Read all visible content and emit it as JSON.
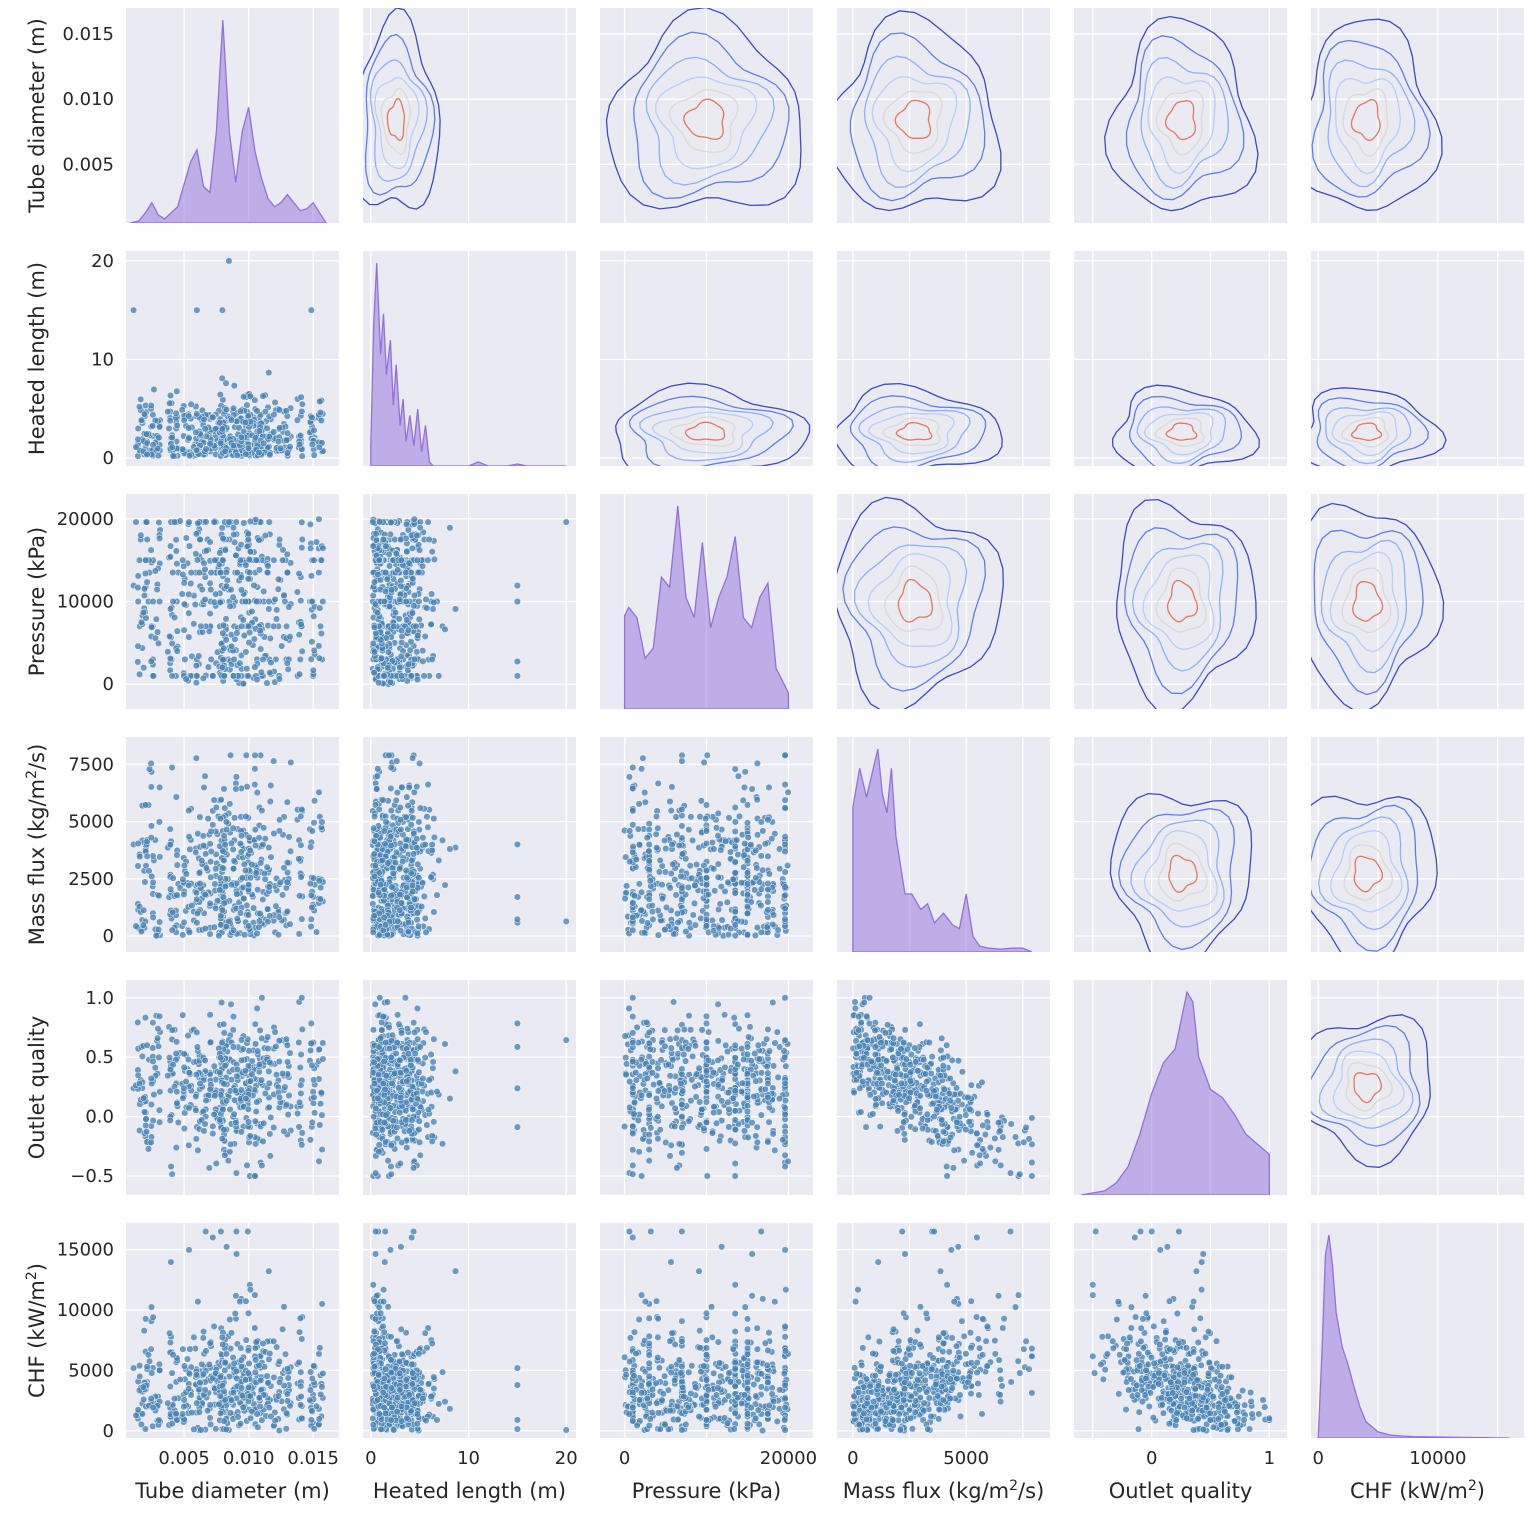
{
  "chart_data": {
    "type": "pairplot",
    "variables": [
      {
        "key": "d",
        "label": "Tube diameter (m)",
        "range": [
          0.0005,
          0.017
        ],
        "ticks": [
          0.005,
          0.01,
          0.015
        ],
        "tick_labels": [
          "0.005",
          "0.010",
          "0.015"
        ]
      },
      {
        "key": "L",
        "label": "Heated length (m)",
        "range": [
          -0.8,
          21
        ],
        "ticks": [
          0,
          10,
          20
        ],
        "tick_labels": [
          "0",
          "10",
          "20"
        ]
      },
      {
        "key": "P",
        "label": "Pressure (kPa)",
        "range": [
          -3000,
          23000
        ],
        "ticks": [
          0,
          10000,
          20000
        ],
        "tick_labels": [
          "0",
          "10000",
          "20000"
        ]
      },
      {
        "key": "G",
        "label": "Mass flux (kg/m²/s)",
        "label_parts": [
          "Mass flux (kg/m",
          "2",
          "/s)"
        ],
        "range": [
          -700,
          8700
        ],
        "ticks": [
          0,
          2500,
          5000,
          7500
        ],
        "tick_labels": [
          "0",
          "2500",
          "5000",
          "7500"
        ]
      },
      {
        "key": "x",
        "label": "Outlet quality",
        "range": [
          -0.66,
          1.15
        ],
        "ticks": [
          -0.5,
          0.0,
          0.5,
          1.0
        ],
        "tick_labels": [
          "−0.5",
          "0.0",
          "0.5",
          "1.0"
        ]
      },
      {
        "key": "CHF",
        "label": "CHF (kW/m²)",
        "label_parts": [
          "CHF (kW/m",
          "2",
          ")"
        ],
        "range": [
          -600,
          17200
        ],
        "ticks": [
          0,
          5000,
          10000,
          15000
        ],
        "tick_labels": [
          "0",
          "5000",
          "10000",
          "15000"
        ]
      }
    ],
    "bottom_tick_overrides": {
      "x": {
        "ticks": [
          0,
          1
        ],
        "tick_labels": [
          "0",
          "1"
        ]
      },
      "CHF": {
        "ticks": [
          0,
          10000
        ],
        "tick_labels": [
          "0",
          "10000"
        ]
      },
      "G": {
        "ticks": [
          0,
          5000
        ],
        "tick_labels": [
          "0",
          "5000"
        ]
      },
      "P": {
        "ticks": [
          0,
          20000
        ],
        "tick_labels": [
          "0",
          "20000"
        ]
      }
    },
    "diagonal": {
      "type": "kde",
      "color": "#9370db",
      "d": {
        "x": [
          0.0008,
          0.0015,
          0.002,
          0.0025,
          0.003,
          0.0035,
          0.0045,
          0.0055,
          0.006,
          0.0065,
          0.007,
          0.0075,
          0.008,
          0.0085,
          0.009,
          0.0095,
          0.01,
          0.0105,
          0.011,
          0.0115,
          0.012,
          0.0125,
          0.013,
          0.0135,
          0.014,
          0.0145,
          0.015,
          0.0155,
          0.016
        ],
        "y": [
          0.0,
          0.01,
          0.05,
          0.1,
          0.04,
          0.02,
          0.08,
          0.3,
          0.36,
          0.18,
          0.15,
          0.45,
          1.0,
          0.45,
          0.2,
          0.45,
          0.57,
          0.35,
          0.22,
          0.12,
          0.08,
          0.1,
          0.14,
          0.1,
          0.06,
          0.07,
          0.1,
          0.05,
          0.0
        ]
      },
      "L": {
        "x": [
          0,
          0.3,
          0.6,
          1.0,
          1.3,
          1.6,
          2.0,
          2.3,
          2.6,
          3.0,
          3.3,
          3.6,
          4.0,
          4.4,
          4.8,
          5.2,
          5.6,
          6.0,
          6.4,
          7,
          8,
          9,
          10,
          11,
          12,
          13,
          14,
          15,
          16,
          18,
          20
        ],
        "y": [
          0.1,
          0.7,
          1.0,
          0.55,
          0.75,
          0.45,
          0.62,
          0.3,
          0.5,
          0.2,
          0.33,
          0.12,
          0.25,
          0.1,
          0.28,
          0.07,
          0.2,
          0.02,
          0.0,
          0.0,
          0.0,
          0.0,
          0.0,
          0.02,
          0.0,
          0.0,
          0.0,
          0.01,
          0.0,
          0.0,
          0.0
        ]
      },
      "P": {
        "x": [
          0,
          500,
          1500,
          2500,
          3500,
          4500,
          5500,
          6500,
          7500,
          8500,
          9500,
          10500,
          11500,
          12500,
          13500,
          14500,
          15500,
          16500,
          17500,
          18500,
          19500,
          20000
        ],
        "y": [
          0.46,
          0.5,
          0.45,
          0.25,
          0.3,
          0.65,
          0.6,
          1.0,
          0.55,
          0.45,
          0.82,
          0.4,
          0.55,
          0.65,
          0.85,
          0.45,
          0.4,
          0.55,
          0.62,
          0.2,
          0.12,
          0.08
        ]
      },
      "G": {
        "x": [
          0,
          300,
          600,
          900,
          1100,
          1300,
          1500,
          1700,
          1900,
          2100,
          2300,
          2600,
          3000,
          3300,
          3600,
          4000,
          4400,
          4700,
          5000,
          5300,
          5600,
          6000,
          6500,
          7000,
          7500,
          7900
        ],
        "y": [
          0.75,
          0.95,
          0.8,
          0.95,
          1.05,
          0.82,
          0.72,
          0.95,
          0.6,
          0.45,
          0.3,
          0.3,
          0.22,
          0.25,
          0.15,
          0.2,
          0.14,
          0.12,
          0.3,
          0.08,
          0.03,
          0.02,
          0.015,
          0.02,
          0.02,
          0.0
        ]
      },
      "x": {
        "x": [
          -0.6,
          -0.4,
          -0.3,
          -0.2,
          -0.1,
          0.0,
          0.1,
          0.2,
          0.3,
          0.35,
          0.4,
          0.5,
          0.6,
          0.7,
          0.8,
          0.9,
          1.0
        ],
        "y": [
          0.0,
          0.02,
          0.06,
          0.14,
          0.3,
          0.5,
          0.65,
          0.72,
          1.0,
          0.95,
          0.68,
          0.52,
          0.48,
          0.4,
          0.3,
          0.25,
          0.2
        ]
      },
      "CHF": {
        "x": [
          0,
          300,
          600,
          900,
          1200,
          1500,
          2000,
          2500,
          3000,
          3500,
          4000,
          5000,
          6000,
          7000,
          8000,
          10000,
          12000,
          14000,
          16000
        ],
        "y": [
          0.0,
          0.4,
          0.9,
          1.0,
          0.85,
          0.62,
          0.45,
          0.36,
          0.25,
          0.15,
          0.08,
          0.03,
          0.015,
          0.01,
          0.007,
          0.005,
          0.003,
          0.002,
          0.0
        ]
      }
    },
    "lower_triangle": {
      "type": "scatter",
      "color": "#4682b4"
    },
    "upper_triangle": {
      "type": "kde_contour",
      "colormap": "coolwarm"
    },
    "xlabel_row": [
      "Tube diameter (m)",
      "Heated length (m)",
      "Pressure (kPa)",
      "Mass flux (kg/m²/s)",
      "Outlet quality",
      "CHF (kW/m²)"
    ],
    "ylabel_col": [
      "Tube diameter (m)",
      "Heated length (m)",
      "Pressure (kPa)",
      "Mass flux (kg/m²/s)",
      "Outlet quality",
      "CHF (kW/m²)"
    ]
  },
  "colors": {
    "panel": "#eaeaf2",
    "grid": "#ffffff",
    "scatter": "#4682b4",
    "kde_fill": "#9370db",
    "contour_low": "#3b4cc0",
    "contour_mid": "#b7cff9",
    "contour_high": "#e8765d"
  }
}
